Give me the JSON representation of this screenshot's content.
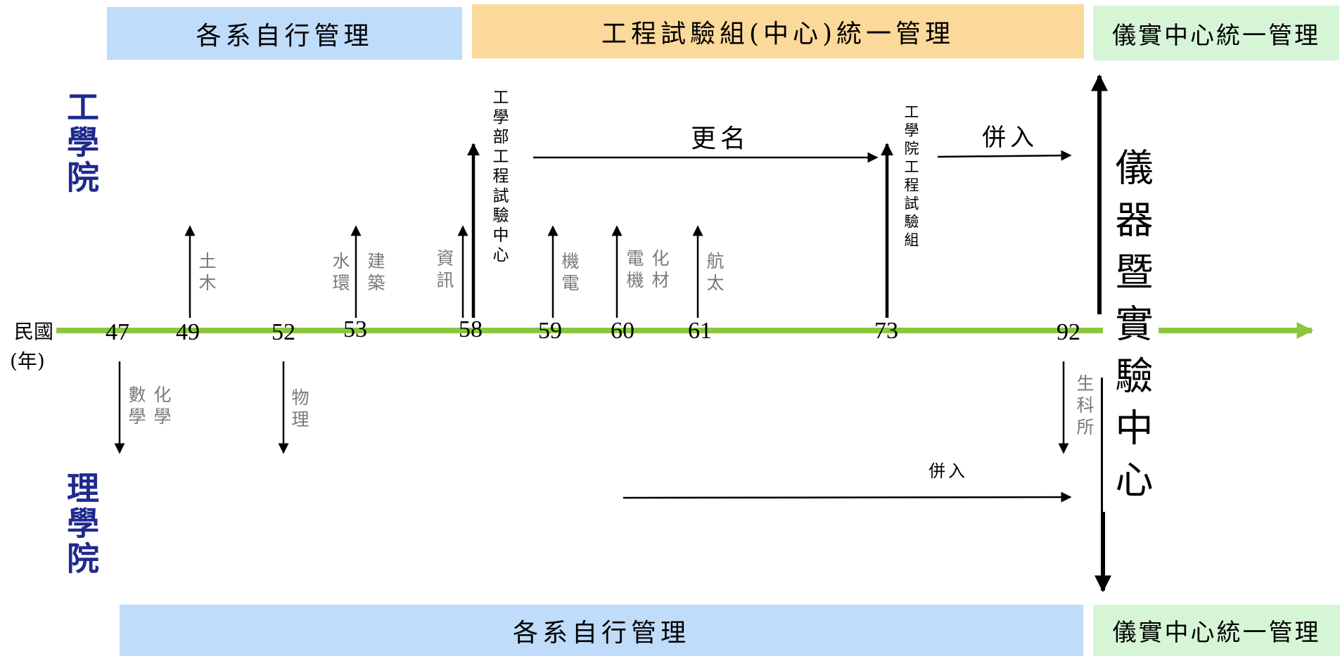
{
  "bands": {
    "top_left": "各系自行管理",
    "top_mid": "工程試驗組(中心)統一管理",
    "top_right": "儀實中心統一管理",
    "bottom_left": "各系自行管理",
    "bottom_right": "儀實中心統一管理"
  },
  "colleges": {
    "engineering": "工學院",
    "science": "理學院"
  },
  "axis": {
    "label": "民國",
    "unit": "(年)"
  },
  "years": [
    "47",
    "49",
    "52",
    "53",
    "58",
    "59",
    "60",
    "61",
    "73",
    "92"
  ],
  "departments": {
    "civil": "土木",
    "water_env_a": "水環",
    "water_env_b": "建築",
    "info": "資訊",
    "mech_elec": "機電",
    "chem_mat_a": "電機",
    "chem_mat_b": "化材",
    "aero": "航太",
    "chem_a": "數學",
    "chem_b": "化學",
    "physics": "物理",
    "bio": "生科所"
  },
  "events": {
    "eng_test_center": "工學部工程試驗中心",
    "eng_test_group": "工學院工程試驗組",
    "rename": "更名",
    "merge_top": "併入",
    "merge_bottom": "併入",
    "instrument_center": "儀器暨實驗中心"
  }
}
